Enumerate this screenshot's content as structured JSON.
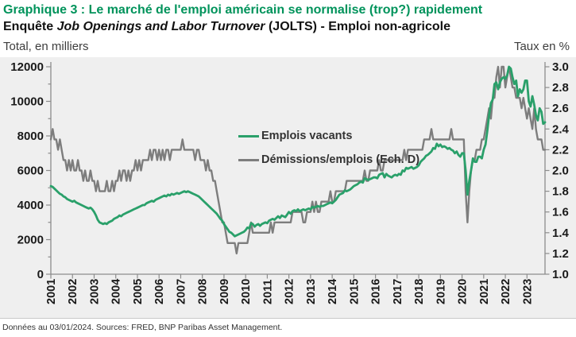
{
  "header": {
    "title": "Graphique 3 : Le marché de l'emploi américain se normalise (trop?) rapidement",
    "subtitle_prefix": "Enquête ",
    "subtitle_italic": "Job Openings and Labor Turnover",
    "subtitle_suffix": " (JOLTS) - Emploi non-agricole",
    "left_axis_caption": "Total, en milliers",
    "right_axis_caption": "Taux en %"
  },
  "legend": {
    "items": [
      {
        "label": "Emplois vacants",
        "color": "#2aa06a"
      },
      {
        "label": "Démissions/emplois (Ech. D)",
        "color": "#7d7d7d"
      }
    ]
  },
  "footer": {
    "source_note": "Données au 03/01/2024. Sources: FRED, BNP Paribas Asset Management."
  },
  "colors": {
    "title_green": "#00935b",
    "line_green": "#2aa06a",
    "line_gray": "#7d7d7d",
    "chart_background": "#efefef",
    "axis": "#8c8c8c",
    "tick_label": "#1a1a1a"
  },
  "chart_data": {
    "type": "line",
    "title": "Enquête Job Openings and Labor Turnover (JOLTS) - Emploi non-agricole",
    "x_frequency": "monthly",
    "x_start": "2001-01",
    "x_end": "2023-11",
    "x_tick_labels": [
      "2001",
      "2002",
      "2003",
      "2004",
      "2005",
      "2006",
      "2007",
      "2008",
      "2009",
      "2010",
      "2011",
      "2012",
      "2013",
      "2014",
      "2015",
      "2016",
      "2017",
      "2018",
      "2019",
      "2020",
      "2021",
      "2022",
      "2023"
    ],
    "left_axis": {
      "label": "Total, en milliers",
      "range": [
        0,
        12000
      ],
      "tick_step": 2000,
      "minor_tick_step": 1000
    },
    "right_axis": {
      "label": "Taux en %",
      "range": [
        1.0,
        3.0
      ],
      "tick_step": 0.2
    },
    "grid": false,
    "legend_position": "inside-top-center",
    "series": [
      {
        "name": "Emplois vacants",
        "axis": "left",
        "color": "#2aa06a",
        "values": [
          5100,
          5050,
          4950,
          4850,
          4750,
          4650,
          4600,
          4500,
          4450,
          4350,
          4300,
          4250,
          4200,
          4250,
          4150,
          4100,
          4050,
          4000,
          3950,
          3900,
          3850,
          3800,
          3850,
          3750,
          3600,
          3400,
          3150,
          3000,
          2950,
          2900,
          2950,
          2900,
          3000,
          3050,
          3100,
          3200,
          3250,
          3300,
          3400,
          3350,
          3450,
          3500,
          3550,
          3600,
          3650,
          3700,
          3750,
          3800,
          3850,
          3900,
          3950,
          4000,
          4000,
          4100,
          4150,
          4200,
          4250,
          4200,
          4300,
          4350,
          4400,
          4450,
          4500,
          4550,
          4500,
          4600,
          4550,
          4650,
          4600,
          4650,
          4700,
          4650,
          4700,
          4750,
          4800,
          4750,
          4800,
          4750,
          4700,
          4650,
          4600,
          4550,
          4500,
          4400,
          4300,
          4200,
          4100,
          4000,
          3900,
          3800,
          3700,
          3600,
          3500,
          3350,
          3200,
          3100,
          2900,
          2750,
          2600,
          2450,
          2400,
          2300,
          2200,
          2250,
          2300,
          2350,
          2400,
          2450,
          2550,
          2700,
          2650,
          2950,
          2900,
          2750,
          2850,
          2900,
          2800,
          2900,
          2950,
          3000,
          2950,
          3100,
          3150,
          3200,
          3150,
          3250,
          3350,
          3250,
          3400,
          3350,
          3300,
          3450,
          3600,
          3500,
          3650,
          3700,
          3650,
          3750,
          3650,
          3700,
          3750,
          3700,
          3750,
          3800,
          3750,
          3900,
          3850,
          3900,
          3950,
          3900,
          3950,
          3950,
          4000,
          4050,
          4100,
          4150,
          4100,
          4200,
          4300,
          4450,
          4600,
          4650,
          4700,
          4850,
          4800,
          4850,
          4900,
          5000,
          5100,
          5150,
          5200,
          5300,
          5350,
          5300,
          5550,
          5500,
          5450,
          5500,
          5550,
          5600,
          5600,
          5550,
          5750,
          5800,
          5850,
          5600,
          5800,
          5700,
          5650,
          5600,
          5700,
          5750,
          5700,
          5800,
          5750,
          6000,
          5950,
          6150,
          6100,
          6150,
          6200,
          6100,
          6150,
          6200,
          6300,
          6500,
          6600,
          6700,
          6850,
          6900,
          7000,
          7100,
          7300,
          7250,
          7550,
          7400,
          7500,
          7350,
          7400,
          7350,
          7250,
          7300,
          7200,
          7150,
          7000,
          7100,
          6900,
          6800,
          7000,
          7000,
          6000,
          4600,
          5400,
          6000,
          6700,
          6500,
          6500,
          6800,
          6800,
          6700,
          7200,
          7500,
          8300,
          9200,
          9900,
          10100,
          11000,
          11100,
          10700,
          11100,
          11300,
          11400,
          11300,
          11500,
          12000,
          11900,
          11400,
          11000,
          11200,
          10300,
          10700,
          10500,
          10700,
          11200,
          11200,
          10000,
          9700,
          10300,
          9800,
          9200,
          8900,
          9600,
          9400,
          8700,
          8790
        ]
      },
      {
        "name": "Démissions/emplois (Ech. D)",
        "axis": "right",
        "color": "#7d7d7d",
        "values": [
          2.3,
          2.4,
          2.3,
          2.3,
          2.2,
          2.3,
          2.2,
          2.1,
          2.1,
          2.0,
          2.1,
          2.0,
          2.1,
          2.0,
          2.0,
          2.1,
          2.0,
          2.0,
          1.9,
          2.0,
          1.9,
          1.9,
          2.0,
          1.9,
          1.9,
          1.8,
          1.9,
          1.8,
          1.8,
          1.8,
          1.8,
          1.9,
          1.8,
          1.8,
          1.9,
          1.8,
          1.9,
          1.9,
          2.0,
          1.9,
          2.0,
          2.0,
          1.9,
          2.0,
          1.9,
          2.0,
          2.0,
          2.1,
          2.0,
          2.1,
          2.0,
          2.1,
          2.1,
          2.1,
          2.1,
          2.2,
          2.1,
          2.2,
          2.2,
          2.1,
          2.2,
          2.1,
          2.2,
          2.1,
          2.2,
          2.2,
          2.1,
          2.2,
          2.2,
          2.2,
          2.2,
          2.2,
          2.2,
          2.3,
          2.2,
          2.2,
          2.2,
          2.2,
          2.2,
          2.2,
          2.1,
          2.2,
          2.2,
          2.1,
          2.1,
          2.1,
          2.0,
          2.1,
          2.0,
          2.0,
          1.9,
          1.9,
          1.8,
          1.7,
          1.6,
          1.5,
          1.5,
          1.4,
          1.3,
          1.3,
          1.3,
          1.3,
          1.3,
          1.2,
          1.3,
          1.3,
          1.3,
          1.3,
          1.3,
          1.3,
          1.4,
          1.5,
          1.4,
          1.4,
          1.4,
          1.4,
          1.4,
          1.4,
          1.4,
          1.4,
          1.4,
          1.4,
          1.5,
          1.4,
          1.5,
          1.5,
          1.5,
          1.5,
          1.5,
          1.5,
          1.5,
          1.5,
          1.5,
          1.5,
          1.6,
          1.6,
          1.6,
          1.6,
          1.6,
          1.6,
          1.5,
          1.5,
          1.6,
          1.6,
          1.6,
          1.7,
          1.6,
          1.7,
          1.6,
          1.6,
          1.7,
          1.7,
          1.7,
          1.7,
          1.7,
          1.8,
          1.7,
          1.7,
          1.8,
          1.8,
          1.8,
          1.8,
          1.8,
          1.8,
          1.9,
          1.9,
          1.9,
          1.9,
          1.9,
          1.9,
          1.9,
          1.9,
          1.9,
          1.9,
          2.0,
          1.9,
          1.9,
          2.0,
          2.0,
          2.0,
          2.0,
          2.0,
          2.1,
          2.0,
          2.0,
          2.1,
          2.1,
          2.1,
          2.1,
          2.1,
          2.1,
          2.1,
          2.1,
          2.1,
          2.1,
          2.1,
          2.2,
          2.1,
          2.2,
          2.2,
          2.2,
          2.2,
          2.2,
          2.2,
          2.2,
          2.2,
          2.2,
          2.3,
          2.3,
          2.3,
          2.3,
          2.4,
          2.3,
          2.3,
          2.3,
          2.3,
          2.3,
          2.3,
          2.3,
          2.3,
          2.3,
          2.3,
          2.4,
          2.3,
          2.3,
          2.3,
          2.3,
          2.3,
          2.3,
          2.3,
          1.8,
          1.5,
          1.8,
          2.0,
          2.1,
          2.1,
          2.2,
          2.2,
          2.2,
          2.3,
          2.3,
          2.4,
          2.5,
          2.6,
          2.5,
          2.7,
          2.7,
          2.9,
          3.0,
          2.8,
          3.0,
          3.0,
          2.8,
          2.9,
          3.0,
          2.9,
          2.8,
          2.8,
          2.7,
          2.7,
          2.7,
          2.6,
          2.7,
          2.6,
          2.5,
          2.6,
          2.5,
          2.4,
          2.6,
          2.4,
          2.3,
          2.3,
          2.3,
          2.2,
          2.2
        ]
      }
    ]
  }
}
